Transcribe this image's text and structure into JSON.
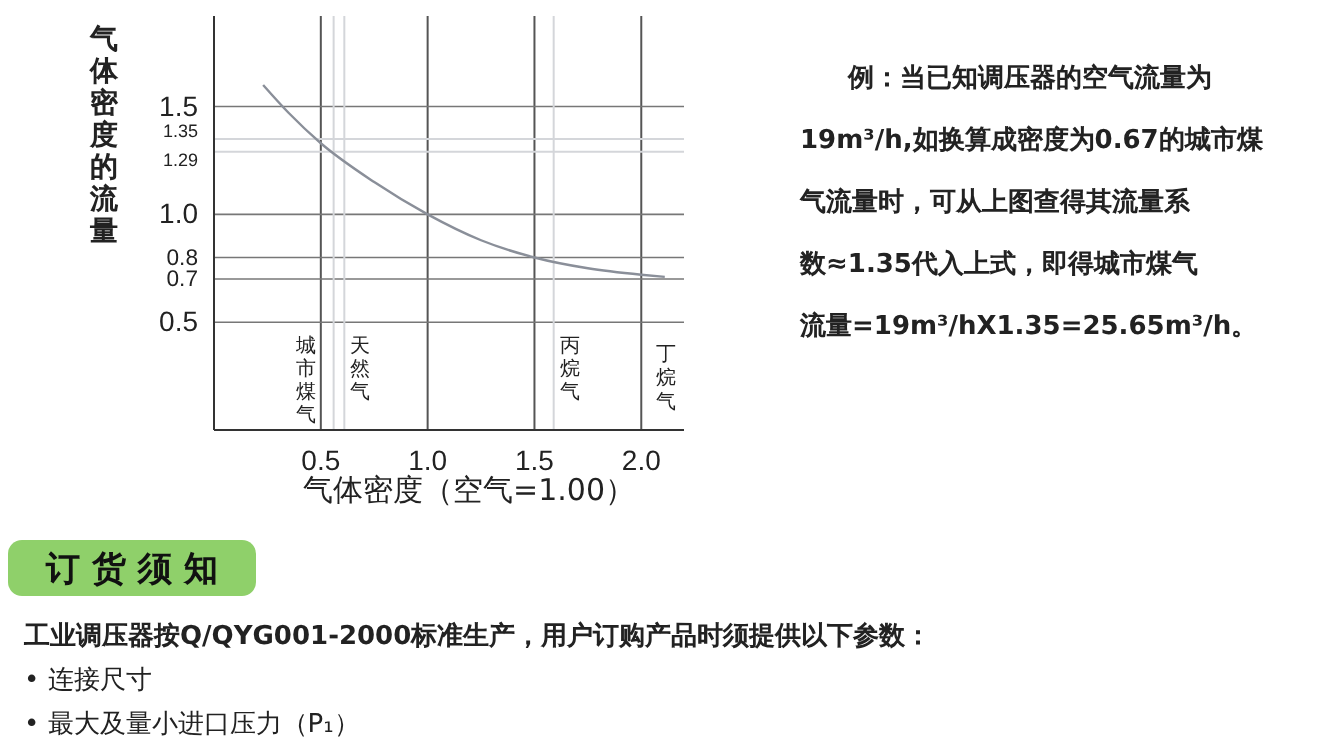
{
  "chart_data": {
    "type": "line",
    "xlabel": "气体密度（空气=1.00）",
    "ylabel": "气体密度的流量",
    "x": [
      0.23,
      0.35,
      0.5,
      0.75,
      1.0,
      1.25,
      1.5,
      1.75,
      2.0,
      2.11
    ],
    "series": [
      {
        "color": "#8a8f99",
        "values": [
          1.6,
          1.47,
          1.33,
          1.15,
          1.0,
          0.88,
          0.8,
          0.75,
          0.72,
          0.71
        ]
      }
    ],
    "xlim": [
      0,
      2.2
    ],
    "ylim": [
      0,
      1.92
    ],
    "xticks": [
      0.5,
      {
        "value": 1,
        "label": "1.0"
      },
      1.5,
      {
        "value": 2,
        "label": "2.0"
      }
    ],
    "yticks": [
      0.5,
      0.7,
      0.8,
      {
        "value": 1,
        "label": "1.0"
      },
      1.5
    ],
    "grid": true,
    "marker": "none",
    "line_style": "solid",
    "ref_lines": [
      {
        "axis": "x",
        "value": 0.56,
        "label": "城市煤气",
        "color": "#d4d6da"
      },
      {
        "axis": "x",
        "value": 0.61,
        "label": "天然气",
        "color": "#d4d6da"
      },
      {
        "axis": "x",
        "value": 1.59,
        "label": "丙烷气",
        "color": "#d4d6da"
      },
      {
        "axis": "y",
        "value": 1.35,
        "label": "1.35",
        "color": "#d4d6da"
      },
      {
        "axis": "y",
        "value": 1.29,
        "label": "1.29",
        "color": "#d4d6da"
      }
    ],
    "annotations": [
      "例：当已知调压器的空气流量为",
      "19m³/h,如换算成密度为0.67的城市煤",
      "气流量时，可从上图查得其流量系",
      "数≈1.35代入上式，即得城市煤气",
      "流量=19m³/hX1.35=25.65m³/h。",
      "订 货 须 知",
      "工业调压器按Q/QYG001-2000标准生产，用户订购产品时须提供以下参数：",
      "• 连接尺寸",
      "• 最大及量小进口压力（P₁）",
      "丁烷气"
    ]
  }
}
